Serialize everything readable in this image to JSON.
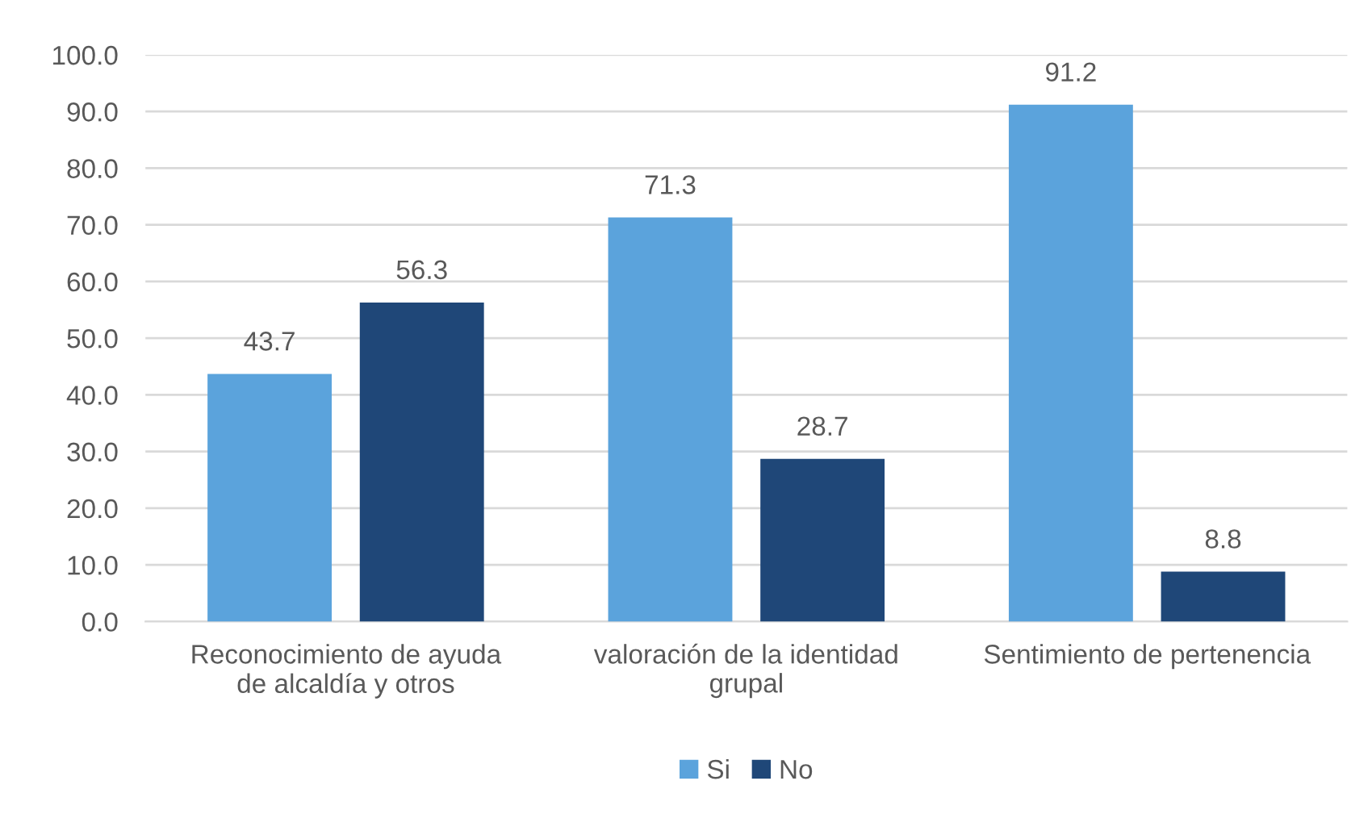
{
  "chart_data": {
    "type": "bar",
    "categories": [
      "Reconocimiento de ayuda\nde alcaldía y otros",
      "valoración de la identidad\ngrupal",
      "Sentimiento de pertenencia"
    ],
    "series": [
      {
        "name": "Si",
        "color": "#5ba3dc",
        "values": [
          43.7,
          71.3,
          91.2
        ]
      },
      {
        "name": "No",
        "color": "#1f4778",
        "values": [
          56.3,
          28.7,
          8.8
        ]
      }
    ],
    "ylim": [
      0,
      100
    ],
    "yticks": [
      {
        "value": 0,
        "label": "0.0"
      },
      {
        "value": 10,
        "label": "10.0"
      },
      {
        "value": 20,
        "label": "20.0"
      },
      {
        "value": 30,
        "label": "30.0"
      },
      {
        "value": 40,
        "label": "40.0"
      },
      {
        "value": 50,
        "label": "50.0"
      },
      {
        "value": 60,
        "label": "60.0"
      },
      {
        "value": 70,
        "label": "70.0"
      },
      {
        "value": 80,
        "label": "80.0"
      },
      {
        "value": 90,
        "label": "90.0"
      },
      {
        "value": 100,
        "label": "100.0"
      }
    ],
    "grid": "y",
    "legend": "bottom",
    "data_labels": true
  }
}
